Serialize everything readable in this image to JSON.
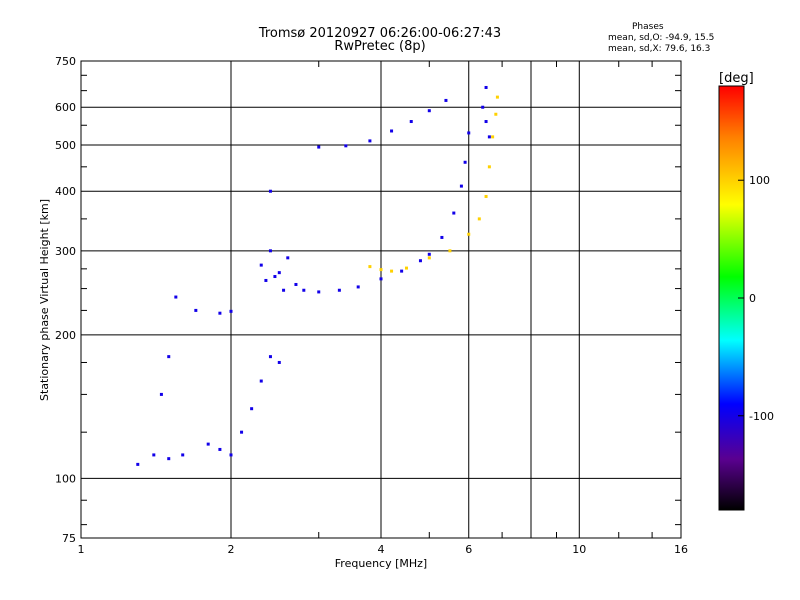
{
  "title_line1": "Tromsø 20120927 06:26:00-06:27:43",
  "title_line2": "RwPretec (8p)",
  "phases": {
    "header": "Phases",
    "line_o": "mean, sd,O: -94.9, 15.5",
    "line_x": "mean, sd,X:  79.6, 16.3"
  },
  "chart_data": {
    "type": "scatter",
    "xlabel": "Frequency [MHz]",
    "ylabel": "Stationary phase Virtual Height [km]",
    "xscale": "log",
    "yscale": "log",
    "xlim": [
      1,
      16
    ],
    "ylim": [
      75,
      750
    ],
    "x_ticks": [
      1,
      2,
      4,
      6,
      10,
      16
    ],
    "x_tick_labels": [
      "1",
      "2",
      "4",
      "6",
      "10",
      "16"
    ],
    "y_ticks": [
      75,
      100,
      200,
      300,
      400,
      500,
      600,
      750
    ],
    "y_tick_labels": [
      "75",
      "100",
      "200",
      "300",
      "400",
      "500",
      "600",
      "750"
    ],
    "grid": true,
    "colorbar": {
      "label": "[deg]",
      "range": [
        -180,
        180
      ],
      "ticks": [
        100,
        0,
        -100
      ],
      "tick_labels": [
        "100",
        "0",
        "-100"
      ]
    },
    "series": [
      {
        "phase": -100,
        "points": [
          [
            1.3,
            107
          ],
          [
            1.4,
            112
          ],
          [
            1.5,
            110
          ],
          [
            1.6,
            112
          ],
          [
            1.8,
            118
          ],
          [
            1.9,
            115
          ],
          [
            2.0,
            112
          ],
          [
            2.1,
            125
          ],
          [
            2.2,
            140
          ],
          [
            2.3,
            160
          ],
          [
            2.4,
            180
          ],
          [
            2.5,
            175
          ],
          [
            1.45,
            150
          ],
          [
            1.5,
            180
          ],
          [
            1.55,
            240
          ],
          [
            1.7,
            225
          ],
          [
            1.9,
            222
          ],
          [
            2.0,
            224
          ],
          [
            2.3,
            280
          ],
          [
            2.35,
            260
          ],
          [
            2.4,
            300
          ],
          [
            2.45,
            265
          ],
          [
            2.5,
            270
          ],
          [
            2.55,
            248
          ],
          [
            2.6,
            290
          ],
          [
            2.7,
            255
          ],
          [
            2.8,
            248
          ],
          [
            3.0,
            246
          ],
          [
            3.3,
            248
          ],
          [
            3.6,
            252
          ],
          [
            4.0,
            262
          ],
          [
            4.4,
            272
          ],
          [
            4.8,
            286
          ],
          [
            5.0,
            295
          ],
          [
            5.3,
            320
          ],
          [
            5.6,
            360
          ],
          [
            5.8,
            410
          ],
          [
            5.9,
            460
          ],
          [
            6.0,
            530
          ],
          [
            3.0,
            495
          ],
          [
            3.4,
            498
          ],
          [
            3.8,
            510
          ],
          [
            4.2,
            535
          ],
          [
            4.6,
            560
          ],
          [
            5.0,
            590
          ],
          [
            5.4,
            620
          ],
          [
            6.4,
            600
          ],
          [
            6.5,
            560
          ],
          [
            6.6,
            520
          ],
          [
            2.4,
            400
          ],
          [
            6.5,
            660
          ]
        ]
      },
      {
        "phase": 100,
        "points": [
          [
            4.0,
            274
          ],
          [
            4.5,
            276
          ],
          [
            5.0,
            290
          ],
          [
            5.5,
            300
          ],
          [
            6.0,
            325
          ],
          [
            6.3,
            350
          ],
          [
            6.5,
            390
          ],
          [
            6.6,
            450
          ],
          [
            6.7,
            520
          ],
          [
            6.8,
            580
          ],
          [
            6.85,
            630
          ],
          [
            3.8,
            278
          ],
          [
            4.2,
            272
          ]
        ]
      }
    ]
  }
}
